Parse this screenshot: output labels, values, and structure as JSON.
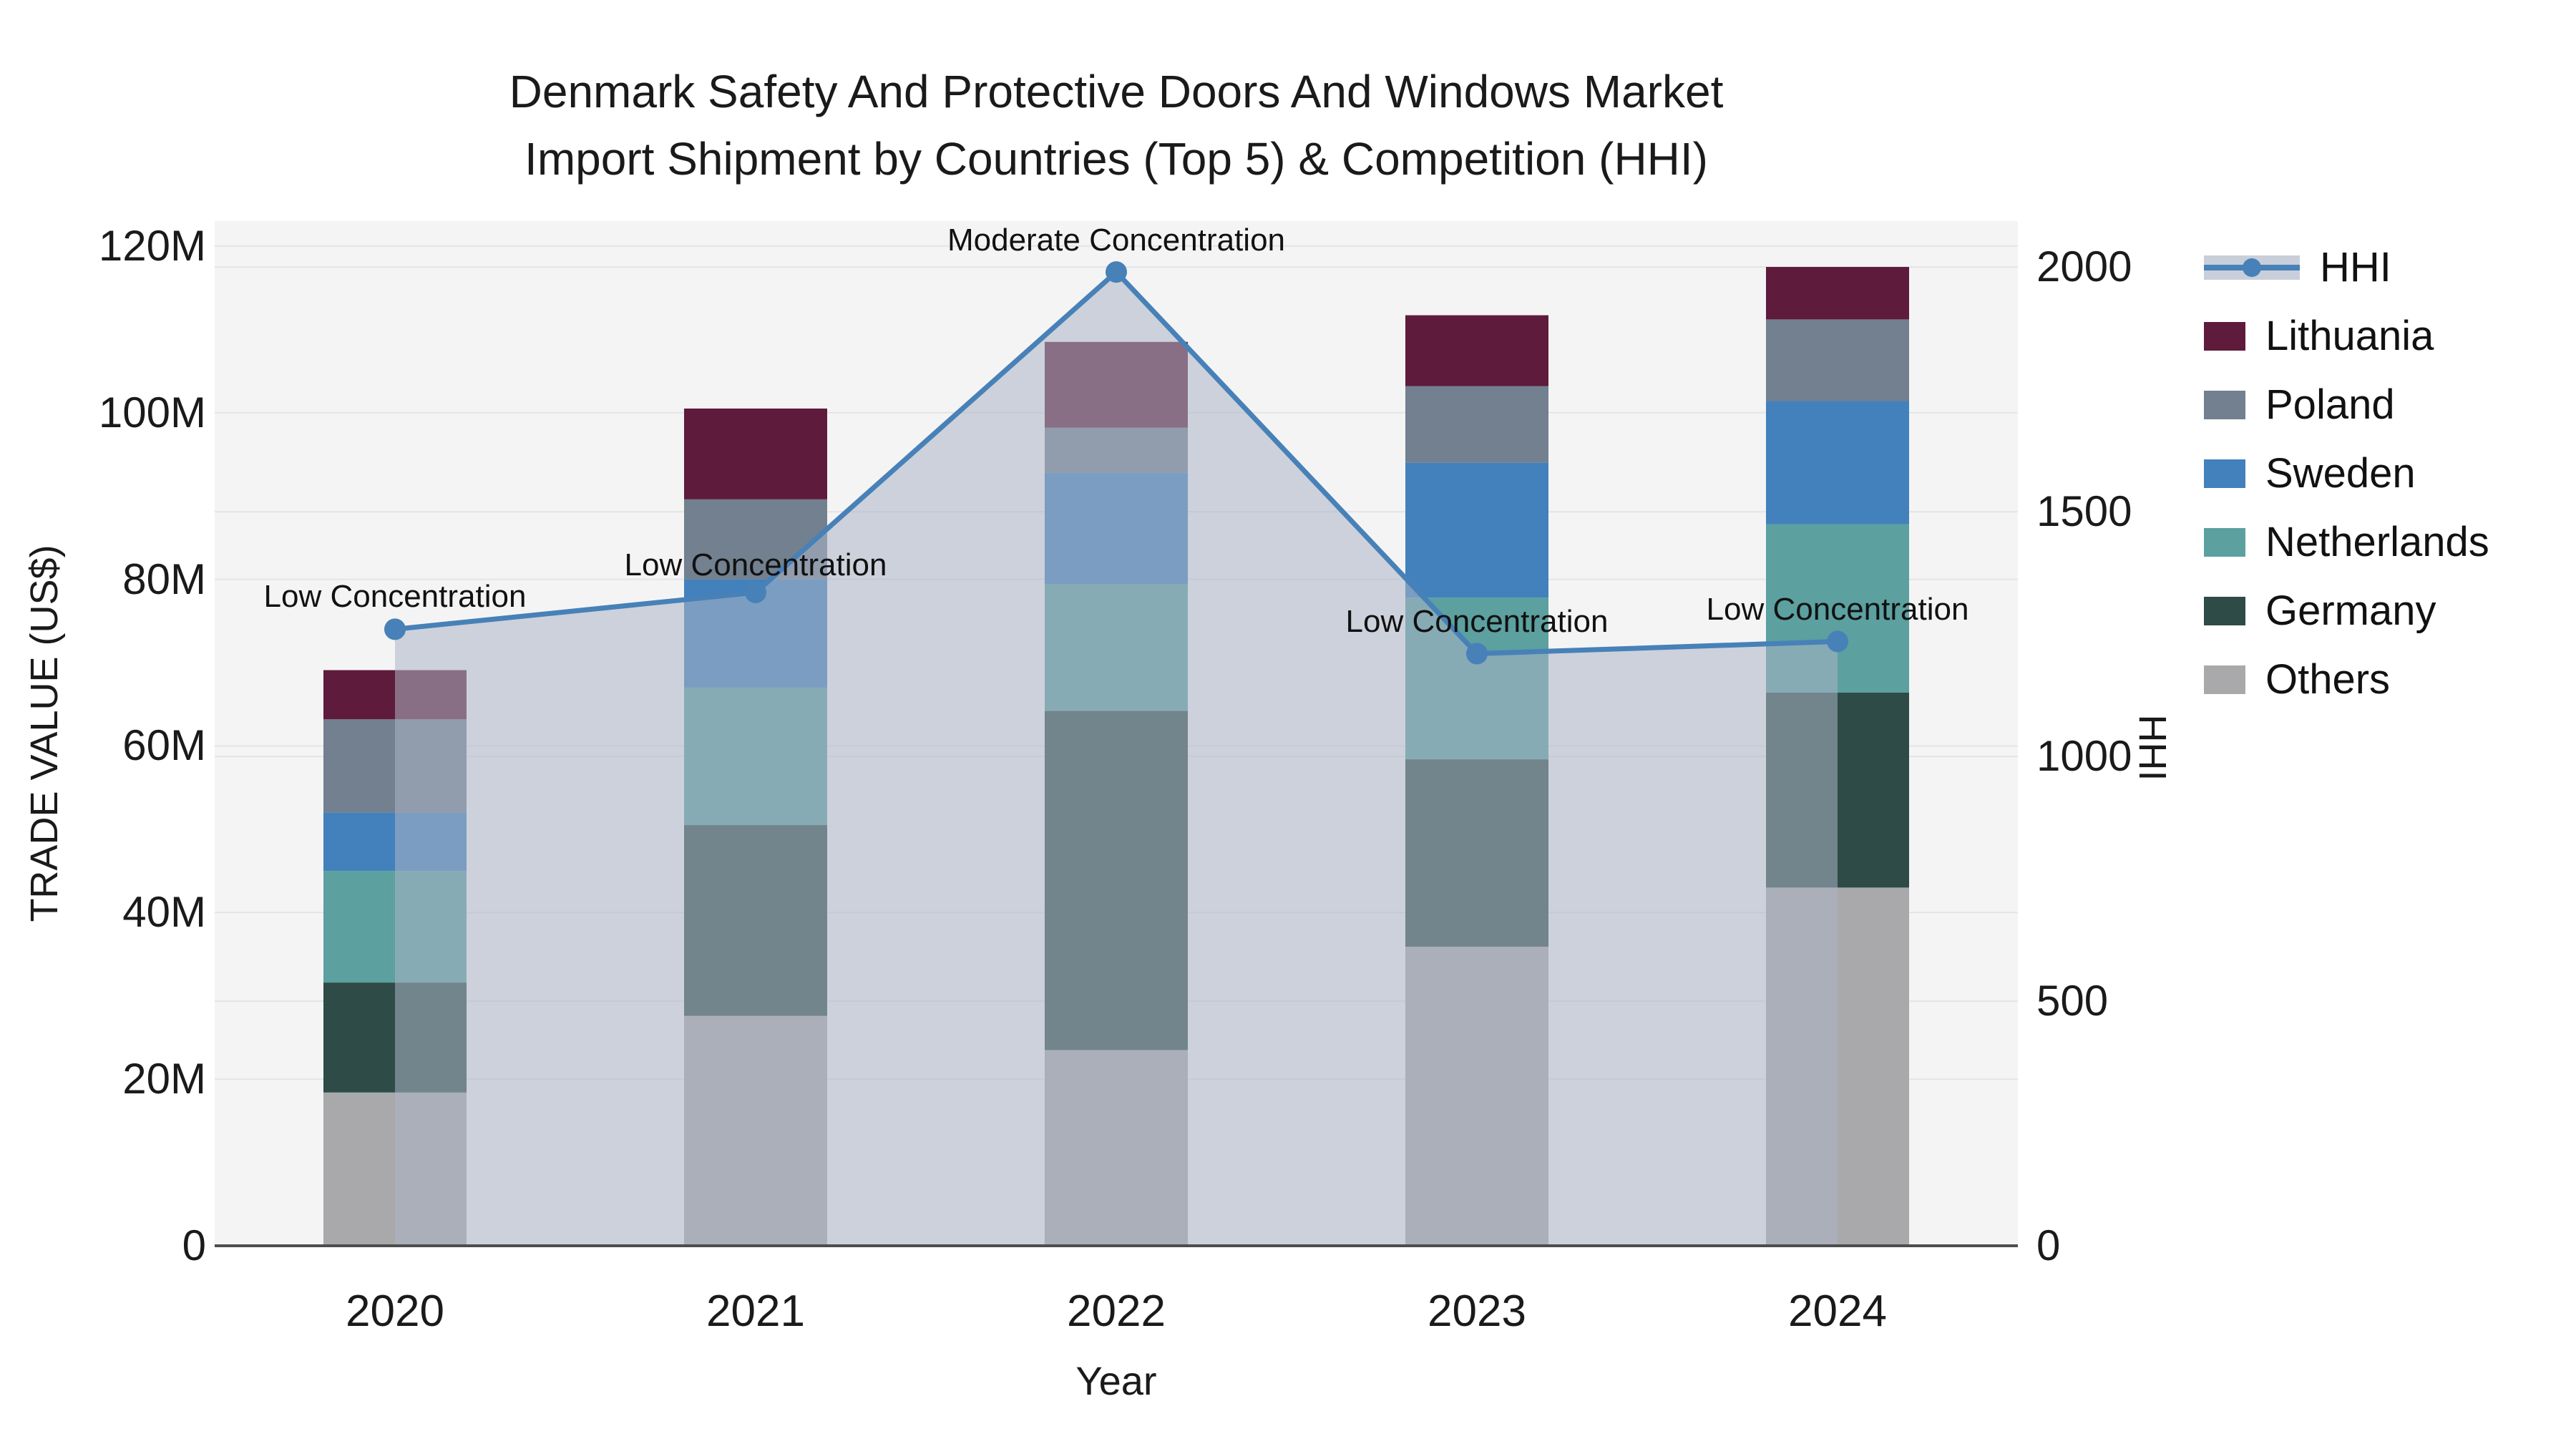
{
  "title": {
    "line1": "Denmark Safety And Protective Doors And Windows Market",
    "line2": "Import Shipment by Countries (Top 5) & Competition (HHI)"
  },
  "axes": {
    "y_left": {
      "title": "TRADE VALUE (US$)",
      "ticks": [
        {
          "label": "0",
          "value": 0
        },
        {
          "label": "20M",
          "value": 20
        },
        {
          "label": "40M",
          "value": 40
        },
        {
          "label": "60M",
          "value": 60
        },
        {
          "label": "80M",
          "value": 80
        },
        {
          "label": "100M",
          "value": 100
        },
        {
          "label": "120M",
          "value": 120
        }
      ]
    },
    "y_right": {
      "title": "HHI",
      "ticks": [
        {
          "label": "0",
          "value": 0
        },
        {
          "label": "500",
          "value": 500
        },
        {
          "label": "1000",
          "value": 1000
        },
        {
          "label": "1500",
          "value": 1500
        },
        {
          "label": "2000",
          "value": 2000
        }
      ]
    },
    "x": {
      "title": "Year",
      "categories": [
        "2020",
        "2021",
        "2022",
        "2023",
        "2024"
      ]
    }
  },
  "legend": {
    "items": [
      {
        "label": "HHI",
        "type": "line",
        "color": "#4781b8"
      },
      {
        "label": "Lithuania",
        "type": "patch",
        "color": "#5e1b3b"
      },
      {
        "label": "Poland",
        "type": "patch",
        "color": "#72808f"
      },
      {
        "label": "Sweden",
        "type": "patch",
        "color": "#4281bc"
      },
      {
        "label": "Netherlands",
        "type": "patch",
        "color": "#5ca0a0"
      },
      {
        "label": "Germany",
        "type": "patch",
        "color": "#2e4b47"
      },
      {
        "label": "Others",
        "type": "patch",
        "color": "#a9a9ab"
      }
    ]
  },
  "chart_data": {
    "type": "combo_stacked_bar_line",
    "title": "Denmark Safety And Protective Doors And Windows Market Import Shipment by Countries (Top 5) & Competition (HHI)",
    "xlabel": "Year",
    "ylabel_left": "TRADE VALUE (US$)",
    "ylabel_right": "HHI",
    "categories": [
      "2020",
      "2021",
      "2022",
      "2023",
      "2024"
    ],
    "bar_value_unit": "million US$",
    "series": [
      {
        "name": "Others",
        "color": "#a9a9ab",
        "values": [
          18.4,
          27.6,
          23.5,
          35.9,
          43.0
        ]
      },
      {
        "name": "Germany",
        "color": "#2e4b47",
        "values": [
          13.2,
          22.9,
          40.7,
          22.5,
          23.4
        ]
      },
      {
        "name": "Netherlands",
        "color": "#5ca0a0",
        "values": [
          13.4,
          16.5,
          15.2,
          19.4,
          20.2
        ]
      },
      {
        "name": "Sweden",
        "color": "#4281bc",
        "values": [
          7.0,
          13.0,
          13.4,
          16.2,
          14.8
        ]
      },
      {
        "name": "Poland",
        "color": "#72808f",
        "values": [
          11.2,
          9.6,
          5.4,
          9.2,
          9.8
        ]
      },
      {
        "name": "Lithuania",
        "color": "#5e1b3b",
        "values": [
          5.9,
          10.9,
          10.3,
          8.5,
          6.3
        ]
      }
    ],
    "bar_totals": [
      69.1,
      100.5,
      108.5,
      111.7,
      117.5
    ],
    "line_series": {
      "name": "HHI",
      "axis": "right",
      "color": "#4781b8",
      "area_fill": "rgba(172,181,197,0.55)",
      "marker": "circle",
      "values": [
        1260,
        1335,
        1990,
        1210,
        1235
      ]
    },
    "annotations": [
      {
        "text": "Low Concentration",
        "category_index": 0,
        "dy": -45
      },
      {
        "text": "Low Concentration",
        "category_index": 1,
        "dy": -38
      },
      {
        "text": "Moderate Concentration",
        "category_index": 2,
        "dy": -44
      },
      {
        "text": "Low Concentration",
        "category_index": 3,
        "dy": -45
      },
      {
        "text": "Low Concentration",
        "category_index": 4,
        "dy": -44
      }
    ],
    "ylim_left": [
      0,
      123
    ],
    "ylim_right": [
      0,
      2094
    ],
    "grid": true,
    "legend_position": "right",
    "plot_bg": "#f5f4f5",
    "grid_color": "#e4e4e7",
    "axis_line_color": "#4d4d4d",
    "text_color": "#1a1a1a"
  }
}
